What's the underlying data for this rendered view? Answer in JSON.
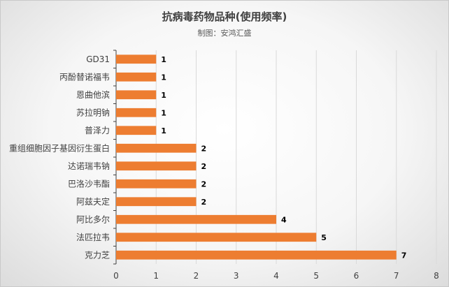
{
  "chart_data": {
    "type": "bar",
    "orientation": "horizontal",
    "title": "抗病毒药物品种(使用频率)",
    "subtitle": "制图：安鸿汇盛",
    "categories": [
      "GD31",
      "丙酚替诺福韦",
      "恩曲他滨",
      "苏拉明钠",
      "普泽力",
      "重组细胞因子基因衍生蛋白",
      "达诺瑞韦钠",
      "巴洛沙韦酯",
      "阿兹夫定",
      "阿比多尔",
      "法匹拉韦",
      "克力芝"
    ],
    "values": [
      1,
      1,
      1,
      1,
      1,
      2,
      2,
      2,
      2,
      4,
      5,
      7
    ],
    "xlim": [
      0,
      8
    ],
    "xticks": [
      0,
      1,
      2,
      3,
      4,
      5,
      6,
      7,
      8
    ],
    "grid": true,
    "legend": "none",
    "bar_color": "#ED7D31",
    "grid_color": "#D9D9D9"
  }
}
